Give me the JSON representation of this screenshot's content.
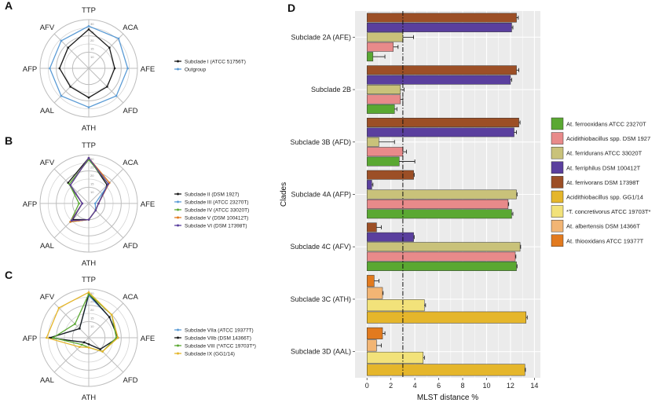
{
  "radar_axes": [
    "TTP",
    "ACA",
    "AFE",
    "AFD",
    "ATH",
    "AAL",
    "AFP",
    "AFV"
  ],
  "colors": {
    "black": "#1a1a1a",
    "blue": "#5b9bd5",
    "green": "#5aa832",
    "pink": "#e88a8a",
    "olive": "#c9c27a",
    "purple": "#5a3f9e",
    "brown": "#9c4f26",
    "gold": "#e5b62b",
    "lightyellow": "#f2e27a",
    "peach": "#f2b574",
    "orange": "#e27a1e"
  },
  "chart_data": [
    {
      "panel": "A",
      "type": "radar",
      "rmax": 30,
      "ring_ticks": [
        "30",
        "25",
        "20",
        "15",
        "10"
      ],
      "series": [
        {
          "name": "Subclade I (ATCC 51756T)",
          "color": "black",
          "values": [
            24,
            18,
            16,
            16,
            18,
            16,
            18,
            18
          ]
        },
        {
          "name": "Outgroup",
          "color": "blue",
          "values": [
            26,
            26,
            24,
            24,
            24,
            24,
            24,
            24
          ]
        }
      ]
    },
    {
      "panel": "B",
      "type": "radar",
      "rmax": 30,
      "ring_ticks": [
        "30",
        "25",
        "20",
        "15",
        "10"
      ],
      "series": [
        {
          "name": "Subclade II (DSM 1927)",
          "color": "black",
          "values": [
            28,
            16,
            6,
            6,
            10,
            14,
            4,
            18
          ]
        },
        {
          "name": "Subclade III (ATCC 23270T)",
          "color": "blue",
          "values": [
            28,
            18,
            4,
            6,
            10,
            16,
            4,
            16
          ]
        },
        {
          "name": "Subclade IV (ATCC 33020T)",
          "color": "green",
          "values": [
            27,
            17,
            6,
            6,
            10,
            16,
            6,
            17
          ]
        },
        {
          "name": "Subclade V (DSM 100412T)",
          "color": "orange",
          "values": [
            28,
            18,
            6,
            6,
            10,
            16,
            4,
            16
          ]
        },
        {
          "name": "Subclade VI (DSM 17398T)",
          "color": "purple",
          "values": [
            28,
            17,
            6,
            6,
            10,
            15,
            4,
            16
          ]
        }
      ]
    },
    {
      "panel": "C",
      "type": "radar",
      "rmax": 30,
      "ring_ticks": [
        "30",
        "25",
        "20",
        "15",
        "10"
      ],
      "series": [
        {
          "name": "Subclade VIIa (ATCC 19377T)",
          "color": "blue",
          "values": [
            26,
            18,
            18,
            10,
            4,
            4,
            24,
            8
          ]
        },
        {
          "name": "Subclade VIIb (DSM 14366T)",
          "color": "black",
          "values": [
            27,
            18,
            18,
            10,
            4,
            4,
            24,
            8
          ]
        },
        {
          "name": "Subclade VIII (*ATCC 19703T*)",
          "color": "green",
          "values": [
            27,
            20,
            17,
            12,
            6,
            6,
            22,
            12
          ]
        },
        {
          "name": "Subclade IX (GG1/14)",
          "color": "gold",
          "values": [
            28,
            20,
            18,
            12,
            6,
            8,
            26,
            26
          ]
        }
      ]
    },
    {
      "panel": "D",
      "type": "bar",
      "orientation": "horizontal",
      "xlabel": "MLST distance %",
      "ylabel": "Clades",
      "xlim": [
        -1,
        14.5
      ],
      "xticks": [
        0,
        2,
        4,
        6,
        8,
        10,
        12,
        14
      ],
      "threshold": 3,
      "legend": [
        {
          "name": "At. ferrooxidans ATCC 23270T",
          "color": "green"
        },
        {
          "name": "Acidithiobacillus spp. DSM 1927",
          "color": "pink"
        },
        {
          "name": "At. ferridurans ATCC 33020T",
          "color": "olive"
        },
        {
          "name": "At. ferriphilus DSM 100412T",
          "color": "purple"
        },
        {
          "name": "At. ferrivorans DSM 17398T",
          "color": "brown"
        },
        {
          "name": "Acidithiobacillus spp. GG1/14",
          "color": "gold"
        },
        {
          "name": "*T. concretivorus ATCC 19703T*",
          "color": "lightyellow"
        },
        {
          "name": "At. albertensis DSM 14366T",
          "color": "peach"
        },
        {
          "name": "At. thiooxidans ATCC 19377T",
          "color": "orange"
        }
      ],
      "groups": [
        {
          "label": "Subclade 2A (AFE)",
          "bars": [
            {
              "color": "brown",
              "value": 12.5,
              "err": 0.15
            },
            {
              "color": "purple",
              "value": 12.1,
              "err": 0.1
            },
            {
              "color": "olive",
              "value": 3.0,
              "err": 0.9
            },
            {
              "color": "pink",
              "value": 2.2,
              "err": 0.4
            },
            {
              "color": "green",
              "value": 0.5,
              "err": 1.0
            }
          ]
        },
        {
          "label": "Subclade 2B",
          "bars": [
            {
              "color": "brown",
              "value": 12.5,
              "err": 0.2
            },
            {
              "color": "purple",
              "value": 12.0,
              "err": 0.1
            },
            {
              "color": "olive",
              "value": 2.8,
              "err": 0.3
            },
            {
              "color": "pink",
              "value": 2.8,
              "err": 0.2
            },
            {
              "color": "green",
              "value": 2.3,
              "err": 0.2
            }
          ]
        },
        {
          "label": "Subclade 3B (AFD)",
          "bars": [
            {
              "color": "brown",
              "value": 12.7,
              "err": 0.1
            },
            {
              "color": "purple",
              "value": 12.3,
              "err": 0.2
            },
            {
              "color": "olive",
              "value": 1.0,
              "err": 1.3
            },
            {
              "color": "pink",
              "value": 3.0,
              "err": 0.3
            },
            {
              "color": "green",
              "value": 2.7,
              "err": 1.3
            }
          ]
        },
        {
          "label": "Subclade 4A (AFP)",
          "bars": [
            {
              "color": "brown",
              "value": 3.9,
              "err": 0.05
            },
            {
              "color": "purple",
              "value": 0.4,
              "err": 0.1
            },
            {
              "color": "olive",
              "value": 12.5,
              "err": 0.05
            },
            {
              "color": "pink",
              "value": 11.8,
              "err": 0.05
            },
            {
              "color": "green",
              "value": 12.1,
              "err": 0.1
            }
          ]
        },
        {
          "label": "Subclade 4C (AFV)",
          "bars": [
            {
              "color": "brown",
              "value": 0.8,
              "err": 0.4
            },
            {
              "color": "purple",
              "value": 3.9,
              "err": 0.05
            },
            {
              "color": "olive",
              "value": 12.8,
              "err": 0.05
            },
            {
              "color": "pink",
              "value": 12.4,
              "err": 0.05
            },
            {
              "color": "green",
              "value": 12.5,
              "err": 0.05
            }
          ]
        },
        {
          "label": "Subclade 3C (ATH)",
          "bars": [
            {
              "color": "orange",
              "value": 0.6,
              "err": 0.4
            },
            {
              "color": "peach",
              "value": 1.3,
              "err": 0.05
            },
            {
              "color": "lightyellow",
              "value": 4.8,
              "err": 0.1
            },
            {
              "color": "gold",
              "value": 13.3,
              "err": 0.1
            }
          ]
        },
        {
          "label": "Subclade 3D (AAL)",
          "bars": [
            {
              "color": "orange",
              "value": 1.3,
              "err": 0.2
            },
            {
              "color": "peach",
              "value": 0.8,
              "err": 0.4
            },
            {
              "color": "lightyellow",
              "value": 4.7,
              "err": 0.1
            },
            {
              "color": "gold",
              "value": 13.2,
              "err": 0.05
            }
          ]
        }
      ]
    }
  ]
}
